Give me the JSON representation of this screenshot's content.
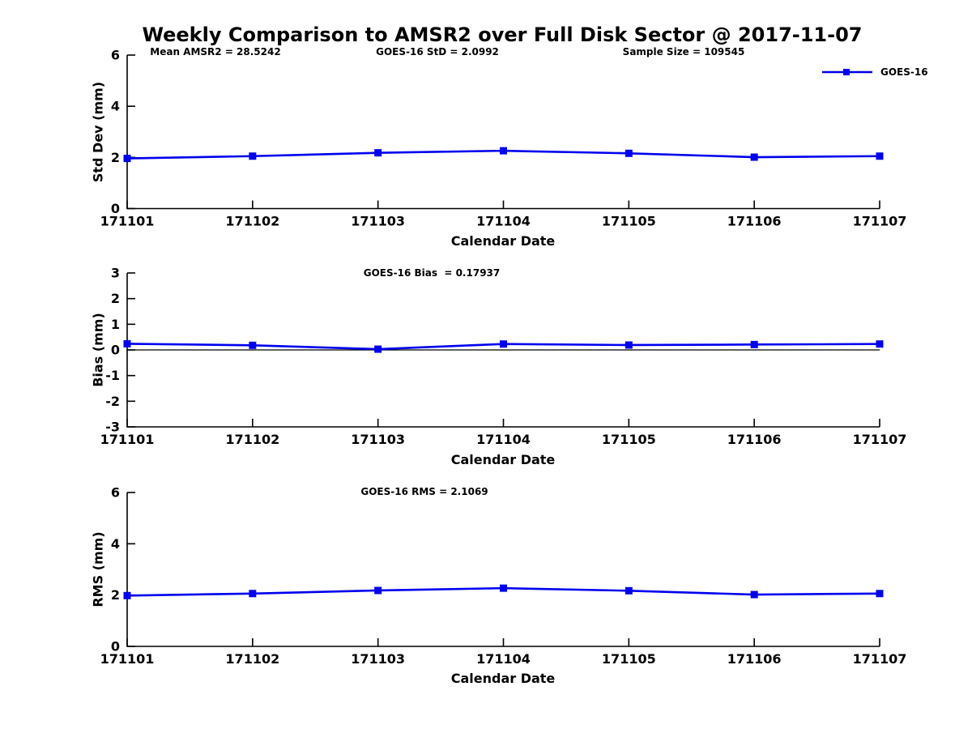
{
  "title": "Weekly Comparison to AMSR2 over Full Disk Sector @ 2017-11-07",
  "annotations": {
    "mean_amsr2": "Mean AMSR2 = 28.5242",
    "goes16_std": "GOES-16 StD = 2.0992",
    "sample_size": "Sample Size = 109545"
  },
  "legend": {
    "label": "GOES-16",
    "position": "top-right",
    "marker": "filled-square"
  },
  "colors": {
    "line": "#0000ee",
    "axis": "#000000",
    "text": "#000000",
    "background": "#ffffff"
  },
  "chart_data": [
    {
      "type": "line",
      "title": "",
      "x": [
        "171101",
        "171102",
        "171103",
        "171104",
        "171105",
        "171106",
        "171107"
      ],
      "series": [
        {
          "name": "GOES-16",
          "values": [
            1.96,
            2.05,
            2.18,
            2.26,
            2.16,
            2.01,
            2.05
          ]
        }
      ],
      "xlabel": "Calendar Date",
      "ylabel": "Std Dev (mm)",
      "ylim": [
        0,
        6
      ],
      "yticks": [
        0,
        2,
        4,
        6
      ],
      "grid": false,
      "marker": "square",
      "legend_position": "top-right"
    },
    {
      "type": "line",
      "title": "GOES-16 Bias  = 0.17937",
      "x": [
        "171101",
        "171102",
        "171103",
        "171104",
        "171105",
        "171106",
        "171107"
      ],
      "series": [
        {
          "name": "GOES-16",
          "values": [
            0.24,
            0.18,
            0.03,
            0.23,
            0.19,
            0.21,
            0.23
          ]
        }
      ],
      "xlabel": "Calendar Date",
      "ylabel": "Bias (mm)",
      "ylim": [
        -3,
        3
      ],
      "yticks": [
        3,
        2,
        1,
        0,
        -1,
        -2,
        -3
      ],
      "zero_line": true,
      "grid": false,
      "marker": "square"
    },
    {
      "type": "line",
      "title": "GOES-16 RMS = 2.1069",
      "x": [
        "171101",
        "171102",
        "171103",
        "171104",
        "171105",
        "171106",
        "171107"
      ],
      "series": [
        {
          "name": "GOES-16",
          "values": [
            1.98,
            2.06,
            2.18,
            2.27,
            2.17,
            2.02,
            2.06
          ]
        }
      ],
      "xlabel": "Calendar Date",
      "ylabel": "RMS (mm)",
      "ylim": [
        0,
        6
      ],
      "yticks": [
        0,
        2,
        4,
        6
      ],
      "grid": false,
      "marker": "square"
    }
  ]
}
